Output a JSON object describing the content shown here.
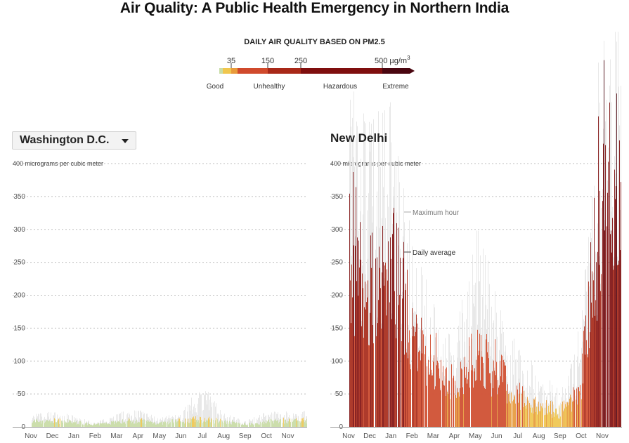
{
  "title": "Air Quality: A Public Health Emergency in Northern India",
  "legend": {
    "title": "DAILY AIR QUALITY BASED ON PM2.5",
    "ticks": [
      "35",
      "150",
      "250",
      "500 µg/m"
    ],
    "unit_sup": "3",
    "categories": [
      "Good",
      "Unhealthy",
      "Hazardous",
      "Extreme"
    ],
    "colors": {
      "good": "#c9dda6",
      "moderate": "#f0c64e",
      "unhealthy_sensitive": "#e89a3b",
      "unhealthy": "#d04a2c",
      "very_unhealthy": "#a82818",
      "hazardous": "#7f0e0e",
      "extreme": "#4a0610",
      "max_hour": "#e6e6e6"
    }
  },
  "chart_data": [
    {
      "type": "bar",
      "title": "Washington D.C.",
      "ylabel": "400 micrograms per cubic meter",
      "ylim": [
        0,
        400
      ],
      "yticks": [
        0,
        50,
        100,
        150,
        200,
        250,
        300,
        350,
        400
      ],
      "x_tick_labels": [
        "Nov",
        "Dec",
        "Jan",
        "Feb",
        "Mar",
        "Apr",
        "May",
        "Jun",
        "Jul",
        "Aug",
        "Sep",
        "Oct",
        "Nov"
      ],
      "series": [
        {
          "name": "Maximum hour",
          "values_by_month": [
            18,
            22,
            16,
            6,
            20,
            26,
            12,
            22,
            60,
            20,
            8,
            22,
            22
          ]
        },
        {
          "name": "Daily average",
          "values_by_month": [
            10,
            12,
            9,
            4,
            10,
            12,
            7,
            12,
            14,
            11,
            5,
            10,
            12
          ]
        }
      ]
    },
    {
      "type": "bar",
      "title": "New Delhi",
      "ylabel": "400 micrograms per cubic meter",
      "ylim": [
        0,
        400
      ],
      "yticks": [
        0,
        50,
        100,
        150,
        200,
        250,
        300,
        350,
        400
      ],
      "x_tick_labels": [
        "Nov",
        "Dec",
        "Jan",
        "Feb",
        "Mar",
        "Apr",
        "May",
        "Jun",
        "Jul",
        "Aug",
        "Sep",
        "Oct",
        "Nov"
      ],
      "annotations": [
        "Maximum hour",
        "Daily average"
      ],
      "series": [
        {
          "name": "Maximum hour",
          "values_by_month": [
            480,
            420,
            470,
            260,
            180,
            130,
            300,
            180,
            120,
            80,
            50,
            150,
            600
          ]
        },
        {
          "name": "Daily average",
          "values_by_month": [
            360,
            300,
            330,
            190,
            130,
            80,
            130,
            110,
            60,
            40,
            30,
            80,
            540
          ]
        }
      ]
    }
  ],
  "dc_select_label": "Washington D.C."
}
